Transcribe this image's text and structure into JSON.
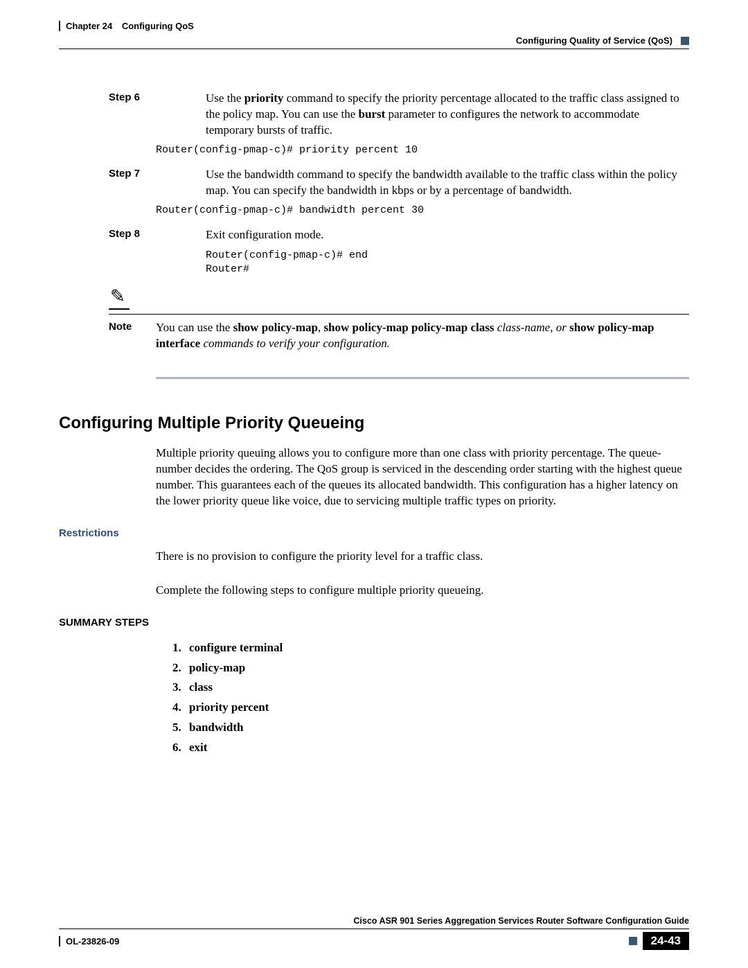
{
  "header": {
    "chapter": "Chapter 24",
    "title": "Configuring QoS",
    "section": "Configuring Quality of Service (QoS)"
  },
  "steps": [
    {
      "label": "Step 6",
      "text_pre": "Use the ",
      "b1": "priority",
      "text_mid1": " command to specify the priority percentage allocated to the traffic class assigned to the policy map. You can use the ",
      "b2": "burst",
      "text_post": " parameter to configures the network to accommodate temporary bursts of traffic.",
      "code": "Router(config-pmap-c)# priority percent 10"
    },
    {
      "label": "Step 7",
      "text_pre": "Use the bandwidth command to specify the bandwidth available to the traffic class within the policy map. You can specify the bandwidth in kbps or by a percentage of bandwidth.",
      "code": "Router(config-pmap-c)# bandwidth percent 30"
    },
    {
      "label": "Step 8",
      "text_pre": "Exit configuration mode.",
      "code": "Router(config-pmap-c)# end\nRouter#"
    }
  ],
  "note": {
    "label": "Note",
    "t1": "You can use the ",
    "b1": "show policy-map",
    "t2": ", ",
    "b2": "show policy-map policy-map class",
    "i1": " class-name, or ",
    "b3": "show policy-map interface",
    "i2": " commands to verify your configuration."
  },
  "section": {
    "heading": "Configuring Multiple Priority Queueing",
    "intro": "Multiple priority queuing allows you to configure more than one class with priority percentage. The queue-number decides the ordering. The QoS group is serviced in the descending order starting with the highest queue number. This guarantees each of the queues its allocated bandwidth. This configuration has a higher latency on the lower priority queue like voice, due to servicing multiple traffic types on priority.",
    "restrictions_h": "Restrictions",
    "restrictions_p": "There is no provision to configure the priority level for a traffic class.",
    "lead": "Complete the following steps to configure multiple priority queueing.",
    "summary_h": "SUMMARY STEPS",
    "summary": [
      "configure terminal",
      "policy-map",
      "class",
      "priority percent",
      "bandwidth",
      "exit"
    ]
  },
  "footer": {
    "guide": "Cisco ASR 901 Series Aggregation Services Router Software Configuration Guide",
    "docid": "OL-23826-09",
    "page": "24-43"
  },
  "colors": {
    "accent": "#3a5770",
    "side_heading": "#2a4a80",
    "divider": "#aeb7bf"
  }
}
